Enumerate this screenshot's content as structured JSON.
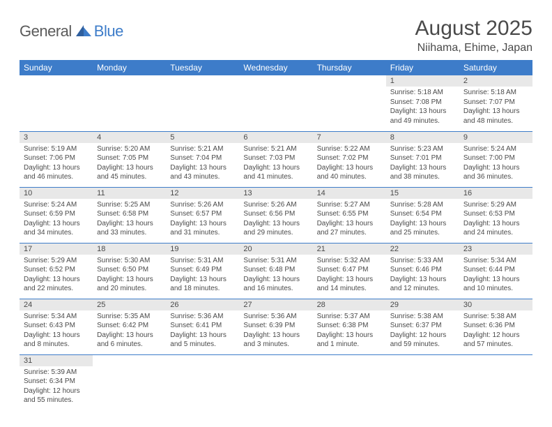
{
  "brand": {
    "text1": "General",
    "text2": "Blue"
  },
  "title": "August 2025",
  "location": "Niihama, Ehime, Japan",
  "colors": {
    "header_bg": "#3d7cc9",
    "daynum_bg": "#e8e8e8",
    "rule": "#3d7cc9",
    "text": "#4a4a4a",
    "brand_gray": "#5a5a5a",
    "brand_blue": "#3d7cc9"
  },
  "weekdays": [
    "Sunday",
    "Monday",
    "Tuesday",
    "Wednesday",
    "Thursday",
    "Friday",
    "Saturday"
  ],
  "cells": [
    {
      "blank": true
    },
    {
      "blank": true
    },
    {
      "blank": true
    },
    {
      "blank": true
    },
    {
      "blank": true
    },
    {
      "n": "1",
      "sr": "Sunrise: 5:18 AM",
      "ss": "Sunset: 7:08 PM",
      "d1": "Daylight: 13 hours",
      "d2": "and 49 minutes."
    },
    {
      "n": "2",
      "sr": "Sunrise: 5:18 AM",
      "ss": "Sunset: 7:07 PM",
      "d1": "Daylight: 13 hours",
      "d2": "and 48 minutes."
    },
    {
      "n": "3",
      "sr": "Sunrise: 5:19 AM",
      "ss": "Sunset: 7:06 PM",
      "d1": "Daylight: 13 hours",
      "d2": "and 46 minutes."
    },
    {
      "n": "4",
      "sr": "Sunrise: 5:20 AM",
      "ss": "Sunset: 7:05 PM",
      "d1": "Daylight: 13 hours",
      "d2": "and 45 minutes."
    },
    {
      "n": "5",
      "sr": "Sunrise: 5:21 AM",
      "ss": "Sunset: 7:04 PM",
      "d1": "Daylight: 13 hours",
      "d2": "and 43 minutes."
    },
    {
      "n": "6",
      "sr": "Sunrise: 5:21 AM",
      "ss": "Sunset: 7:03 PM",
      "d1": "Daylight: 13 hours",
      "d2": "and 41 minutes."
    },
    {
      "n": "7",
      "sr": "Sunrise: 5:22 AM",
      "ss": "Sunset: 7:02 PM",
      "d1": "Daylight: 13 hours",
      "d2": "and 40 minutes."
    },
    {
      "n": "8",
      "sr": "Sunrise: 5:23 AM",
      "ss": "Sunset: 7:01 PM",
      "d1": "Daylight: 13 hours",
      "d2": "and 38 minutes."
    },
    {
      "n": "9",
      "sr": "Sunrise: 5:24 AM",
      "ss": "Sunset: 7:00 PM",
      "d1": "Daylight: 13 hours",
      "d2": "and 36 minutes."
    },
    {
      "n": "10",
      "sr": "Sunrise: 5:24 AM",
      "ss": "Sunset: 6:59 PM",
      "d1": "Daylight: 13 hours",
      "d2": "and 34 minutes."
    },
    {
      "n": "11",
      "sr": "Sunrise: 5:25 AM",
      "ss": "Sunset: 6:58 PM",
      "d1": "Daylight: 13 hours",
      "d2": "and 33 minutes."
    },
    {
      "n": "12",
      "sr": "Sunrise: 5:26 AM",
      "ss": "Sunset: 6:57 PM",
      "d1": "Daylight: 13 hours",
      "d2": "and 31 minutes."
    },
    {
      "n": "13",
      "sr": "Sunrise: 5:26 AM",
      "ss": "Sunset: 6:56 PM",
      "d1": "Daylight: 13 hours",
      "d2": "and 29 minutes."
    },
    {
      "n": "14",
      "sr": "Sunrise: 5:27 AM",
      "ss": "Sunset: 6:55 PM",
      "d1": "Daylight: 13 hours",
      "d2": "and 27 minutes."
    },
    {
      "n": "15",
      "sr": "Sunrise: 5:28 AM",
      "ss": "Sunset: 6:54 PM",
      "d1": "Daylight: 13 hours",
      "d2": "and 25 minutes."
    },
    {
      "n": "16",
      "sr": "Sunrise: 5:29 AM",
      "ss": "Sunset: 6:53 PM",
      "d1": "Daylight: 13 hours",
      "d2": "and 24 minutes."
    },
    {
      "n": "17",
      "sr": "Sunrise: 5:29 AM",
      "ss": "Sunset: 6:52 PM",
      "d1": "Daylight: 13 hours",
      "d2": "and 22 minutes."
    },
    {
      "n": "18",
      "sr": "Sunrise: 5:30 AM",
      "ss": "Sunset: 6:50 PM",
      "d1": "Daylight: 13 hours",
      "d2": "and 20 minutes."
    },
    {
      "n": "19",
      "sr": "Sunrise: 5:31 AM",
      "ss": "Sunset: 6:49 PM",
      "d1": "Daylight: 13 hours",
      "d2": "and 18 minutes."
    },
    {
      "n": "20",
      "sr": "Sunrise: 5:31 AM",
      "ss": "Sunset: 6:48 PM",
      "d1": "Daylight: 13 hours",
      "d2": "and 16 minutes."
    },
    {
      "n": "21",
      "sr": "Sunrise: 5:32 AM",
      "ss": "Sunset: 6:47 PM",
      "d1": "Daylight: 13 hours",
      "d2": "and 14 minutes."
    },
    {
      "n": "22",
      "sr": "Sunrise: 5:33 AM",
      "ss": "Sunset: 6:46 PM",
      "d1": "Daylight: 13 hours",
      "d2": "and 12 minutes."
    },
    {
      "n": "23",
      "sr": "Sunrise: 5:34 AM",
      "ss": "Sunset: 6:44 PM",
      "d1": "Daylight: 13 hours",
      "d2": "and 10 minutes."
    },
    {
      "n": "24",
      "sr": "Sunrise: 5:34 AM",
      "ss": "Sunset: 6:43 PM",
      "d1": "Daylight: 13 hours",
      "d2": "and 8 minutes."
    },
    {
      "n": "25",
      "sr": "Sunrise: 5:35 AM",
      "ss": "Sunset: 6:42 PM",
      "d1": "Daylight: 13 hours",
      "d2": "and 6 minutes."
    },
    {
      "n": "26",
      "sr": "Sunrise: 5:36 AM",
      "ss": "Sunset: 6:41 PM",
      "d1": "Daylight: 13 hours",
      "d2": "and 5 minutes."
    },
    {
      "n": "27",
      "sr": "Sunrise: 5:36 AM",
      "ss": "Sunset: 6:39 PM",
      "d1": "Daylight: 13 hours",
      "d2": "and 3 minutes."
    },
    {
      "n": "28",
      "sr": "Sunrise: 5:37 AM",
      "ss": "Sunset: 6:38 PM",
      "d1": "Daylight: 13 hours",
      "d2": "and 1 minute."
    },
    {
      "n": "29",
      "sr": "Sunrise: 5:38 AM",
      "ss": "Sunset: 6:37 PM",
      "d1": "Daylight: 12 hours",
      "d2": "and 59 minutes."
    },
    {
      "n": "30",
      "sr": "Sunrise: 5:38 AM",
      "ss": "Sunset: 6:36 PM",
      "d1": "Daylight: 12 hours",
      "d2": "and 57 minutes."
    },
    {
      "n": "31",
      "sr": "Sunrise: 5:39 AM",
      "ss": "Sunset: 6:34 PM",
      "d1": "Daylight: 12 hours",
      "d2": "and 55 minutes."
    },
    {
      "blank": true
    },
    {
      "blank": true
    },
    {
      "blank": true
    },
    {
      "blank": true
    },
    {
      "blank": true
    },
    {
      "blank": true
    }
  ]
}
